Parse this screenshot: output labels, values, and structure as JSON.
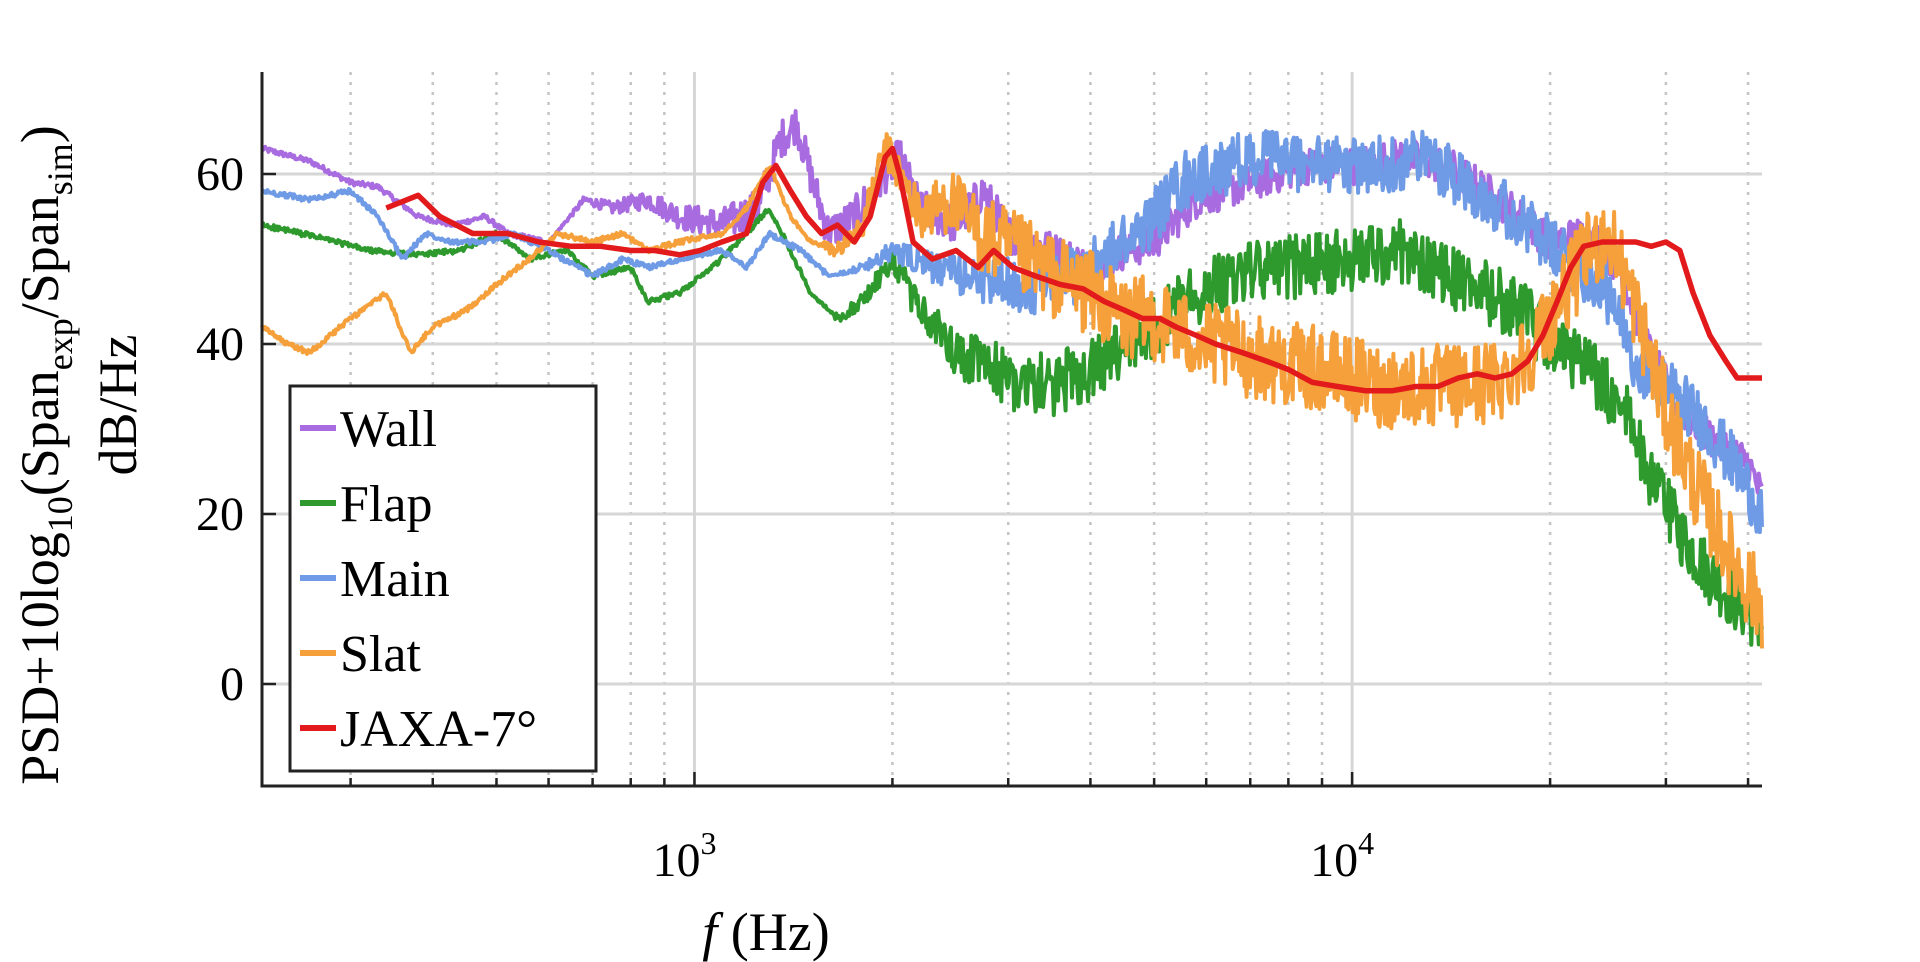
{
  "chart_data": {
    "type": "line",
    "xscale": "log",
    "xlim": [
      220,
      42000
    ],
    "ylim": [
      -12,
      72
    ],
    "grid": true,
    "xlabel": {
      "italic": "f",
      "rest": " (Hz)"
    },
    "ylabel_line1": {
      "base": "PSD+10log",
      "sub1": "10",
      "paren_open": "(Span",
      "sub2": "exp",
      "slash": "/Span",
      "sub3": "sim",
      "paren_close": ")"
    },
    "ylabel_line2": "dB/Hz",
    "yticks": [
      {
        "value": 0,
        "label": "0"
      },
      {
        "value": 20,
        "label": "20"
      },
      {
        "value": 40,
        "label": "40"
      },
      {
        "value": 60,
        "label": "60"
      }
    ],
    "xticks": [
      {
        "value": 1000,
        "base": "10",
        "exp": "3"
      },
      {
        "value": 10000,
        "base": "10",
        "exp": "4"
      }
    ],
    "legend_position": "bottom-left",
    "series": [
      {
        "name": "Wall",
        "color": "#A86CE0",
        "noisy": true,
        "noise_start": 600,
        "noise_amp": 0.45,
        "points": [
          [
            220,
            63
          ],
          [
            260,
            61.5
          ],
          [
            300,
            59
          ],
          [
            330,
            58.5
          ],
          [
            380,
            55
          ],
          [
            430,
            54
          ],
          [
            480,
            55
          ],
          [
            520,
            53
          ],
          [
            600,
            52
          ],
          [
            680,
            57
          ],
          [
            750,
            56
          ],
          [
            850,
            57
          ],
          [
            950,
            55
          ],
          [
            1100,
            54
          ],
          [
            1250,
            56
          ],
          [
            1350,
            64
          ],
          [
            1430,
            66
          ],
          [
            1500,
            60
          ],
          [
            1600,
            53
          ],
          [
            1750,
            55
          ],
          [
            1950,
            60
          ],
          [
            2050,
            62
          ],
          [
            2200,
            56
          ],
          [
            2500,
            54
          ],
          [
            2750,
            58
          ],
          [
            3000,
            53
          ],
          [
            3500,
            51
          ],
          [
            4000,
            49
          ],
          [
            4500,
            51
          ],
          [
            5000,
            52
          ],
          [
            5800,
            57
          ],
          [
            7000,
            59
          ],
          [
            8500,
            61
          ],
          [
            10000,
            61
          ],
          [
            12000,
            62
          ],
          [
            14000,
            61
          ],
          [
            16000,
            58
          ],
          [
            18000,
            55
          ],
          [
            20000,
            52
          ],
          [
            23000,
            53
          ],
          [
            25500,
            49
          ],
          [
            28000,
            40
          ],
          [
            31000,
            33
          ],
          [
            35000,
            29
          ],
          [
            40000,
            26
          ],
          [
            42000,
            22
          ]
        ]
      },
      {
        "name": "Flap",
        "color": "#2E9A2E",
        "noisy": true,
        "noise_start": 1500,
        "noise_amp": 0.75,
        "points": [
          [
            220,
            54
          ],
          [
            270,
            52.5
          ],
          [
            320,
            51
          ],
          [
            380,
            50.5
          ],
          [
            440,
            51
          ],
          [
            500,
            53
          ],
          [
            560,
            50
          ],
          [
            640,
            51
          ],
          [
            700,
            48
          ],
          [
            800,
            49
          ],
          [
            850,
            45
          ],
          [
            950,
            46
          ],
          [
            1100,
            50
          ],
          [
            1200,
            53
          ],
          [
            1300,
            56
          ],
          [
            1400,
            51
          ],
          [
            1500,
            46
          ],
          [
            1650,
            43
          ],
          [
            1800,
            45
          ],
          [
            2000,
            50
          ],
          [
            2200,
            44
          ],
          [
            2500,
            39
          ],
          [
            3000,
            36
          ],
          [
            3500,
            35
          ],
          [
            4000,
            37
          ],
          [
            4500,
            39
          ],
          [
            5000,
            42
          ],
          [
            5500,
            45
          ],
          [
            6500,
            48
          ],
          [
            8000,
            49
          ],
          [
            10000,
            50
          ],
          [
            12000,
            51
          ],
          [
            14000,
            48
          ],
          [
            16000,
            46
          ],
          [
            18000,
            44
          ],
          [
            20000,
            40
          ],
          [
            23000,
            37
          ],
          [
            26000,
            32
          ],
          [
            29000,
            23
          ],
          [
            32000,
            17
          ],
          [
            35000,
            13
          ],
          [
            38000,
            10
          ],
          [
            42000,
            7
          ]
        ]
      },
      {
        "name": "Main",
        "color": "#6F9BE6",
        "noisy": true,
        "noise_start": 1600,
        "noise_amp": 0.7,
        "points": [
          [
            220,
            58
          ],
          [
            260,
            57
          ],
          [
            300,
            58
          ],
          [
            330,
            55
          ],
          [
            360,
            50
          ],
          [
            390,
            53
          ],
          [
            430,
            52
          ],
          [
            480,
            52
          ],
          [
            530,
            53
          ],
          [
            600,
            51
          ],
          [
            700,
            48
          ],
          [
            780,
            50
          ],
          [
            850,
            49
          ],
          [
            950,
            50
          ],
          [
            1100,
            51
          ],
          [
            1200,
            49
          ],
          [
            1300,
            53
          ],
          [
            1450,
            51
          ],
          [
            1600,
            48
          ],
          [
            1800,
            49
          ],
          [
            2000,
            51
          ],
          [
            2300,
            49
          ],
          [
            2600,
            48
          ],
          [
            3000,
            47
          ],
          [
            3500,
            47
          ],
          [
            4000,
            49
          ],
          [
            4500,
            52
          ],
          [
            5000,
            55
          ],
          [
            5500,
            59
          ],
          [
            6500,
            61
          ],
          [
            7500,
            62
          ],
          [
            9000,
            61
          ],
          [
            11000,
            61
          ],
          [
            13000,
            62
          ],
          [
            15000,
            59
          ],
          [
            17000,
            56
          ],
          [
            19000,
            53
          ],
          [
            21000,
            50
          ],
          [
            24000,
            47
          ],
          [
            27000,
            38
          ],
          [
            30000,
            35
          ],
          [
            34000,
            31
          ],
          [
            38000,
            26
          ],
          [
            42000,
            20
          ]
        ]
      },
      {
        "name": "Slat",
        "color": "#F5A03A",
        "noisy": true,
        "noise_start": 1450,
        "noise_amp": 1.0,
        "points": [
          [
            220,
            42
          ],
          [
            240,
            40
          ],
          [
            260,
            39
          ],
          [
            300,
            43
          ],
          [
            340,
            46
          ],
          [
            370,
            39
          ],
          [
            400,
            42
          ],
          [
            450,
            44
          ],
          [
            500,
            47
          ],
          [
            560,
            50
          ],
          [
            620,
            53
          ],
          [
            700,
            52
          ],
          [
            780,
            53
          ],
          [
            850,
            51
          ],
          [
            950,
            52
          ],
          [
            1100,
            53
          ],
          [
            1200,
            56
          ],
          [
            1300,
            61
          ],
          [
            1400,
            55
          ],
          [
            1500,
            52
          ],
          [
            1650,
            51
          ],
          [
            1800,
            54
          ],
          [
            1950,
            63
          ],
          [
            2050,
            60
          ],
          [
            2200,
            55
          ],
          [
            2450,
            57
          ],
          [
            2700,
            53
          ],
          [
            3000,
            51
          ],
          [
            3500,
            48
          ],
          [
            4000,
            46
          ],
          [
            4500,
            43
          ],
          [
            5000,
            43
          ],
          [
            6000,
            40
          ],
          [
            7500,
            38
          ],
          [
            9000,
            37
          ],
          [
            11000,
            35
          ],
          [
            13000,
            35
          ],
          [
            15000,
            35
          ],
          [
            17000,
            36
          ],
          [
            19000,
            40
          ],
          [
            21000,
            46
          ],
          [
            23000,
            51
          ],
          [
            24500,
            53
          ],
          [
            26000,
            48
          ],
          [
            28000,
            40
          ],
          [
            30000,
            32
          ],
          [
            33000,
            24
          ],
          [
            36000,
            18
          ],
          [
            39000,
            13
          ],
          [
            42000,
            9
          ]
        ]
      },
      {
        "name": "JAXA-7°",
        "color": "#E21A1C",
        "noisy": false,
        "points": [
          [
            340,
            56
          ],
          [
            380,
            57.5
          ],
          [
            410,
            55
          ],
          [
            460,
            53
          ],
          [
            520,
            53
          ],
          [
            580,
            52
          ],
          [
            650,
            51.5
          ],
          [
            720,
            51.5
          ],
          [
            800,
            51
          ],
          [
            870,
            51
          ],
          [
            950,
            50.5
          ],
          [
            1020,
            51
          ],
          [
            1100,
            52
          ],
          [
            1200,
            53
          ],
          [
            1270,
            59
          ],
          [
            1330,
            61
          ],
          [
            1400,
            58
          ],
          [
            1480,
            55
          ],
          [
            1560,
            53
          ],
          [
            1650,
            54
          ],
          [
            1750,
            52
          ],
          [
            1850,
            55
          ],
          [
            1950,
            62
          ],
          [
            2000,
            63
          ],
          [
            2050,
            60
          ],
          [
            2150,
            52
          ],
          [
            2300,
            50
          ],
          [
            2500,
            51
          ],
          [
            2700,
            49
          ],
          [
            2850,
            51
          ],
          [
            3050,
            49
          ],
          [
            3300,
            48
          ],
          [
            3600,
            47
          ],
          [
            3900,
            46.5
          ],
          [
            4200,
            45
          ],
          [
            4500,
            44
          ],
          [
            4800,
            43
          ],
          [
            5100,
            43
          ],
          [
            5400,
            42
          ],
          [
            5800,
            41
          ],
          [
            6200,
            40
          ],
          [
            6800,
            39
          ],
          [
            7400,
            38
          ],
          [
            8000,
            37
          ],
          [
            8700,
            35.5
          ],
          [
            9500,
            35
          ],
          [
            10500,
            34.5
          ],
          [
            11500,
            34.5
          ],
          [
            12500,
            35
          ],
          [
            13500,
            35
          ],
          [
            14500,
            36
          ],
          [
            15500,
            36.5
          ],
          [
            16500,
            36
          ],
          [
            17500,
            36.5
          ],
          [
            18500,
            38
          ],
          [
            19500,
            41
          ],
          [
            20500,
            45
          ],
          [
            21500,
            49
          ],
          [
            22500,
            51.5
          ],
          [
            24000,
            52
          ],
          [
            25500,
            52
          ],
          [
            27000,
            52
          ],
          [
            28500,
            51.5
          ],
          [
            30000,
            52
          ],
          [
            31500,
            51
          ],
          [
            33000,
            46
          ],
          [
            35000,
            41
          ],
          [
            37000,
            38
          ],
          [
            38500,
            36
          ],
          [
            40000,
            36
          ],
          [
            42000,
            36
          ]
        ]
      }
    ]
  }
}
